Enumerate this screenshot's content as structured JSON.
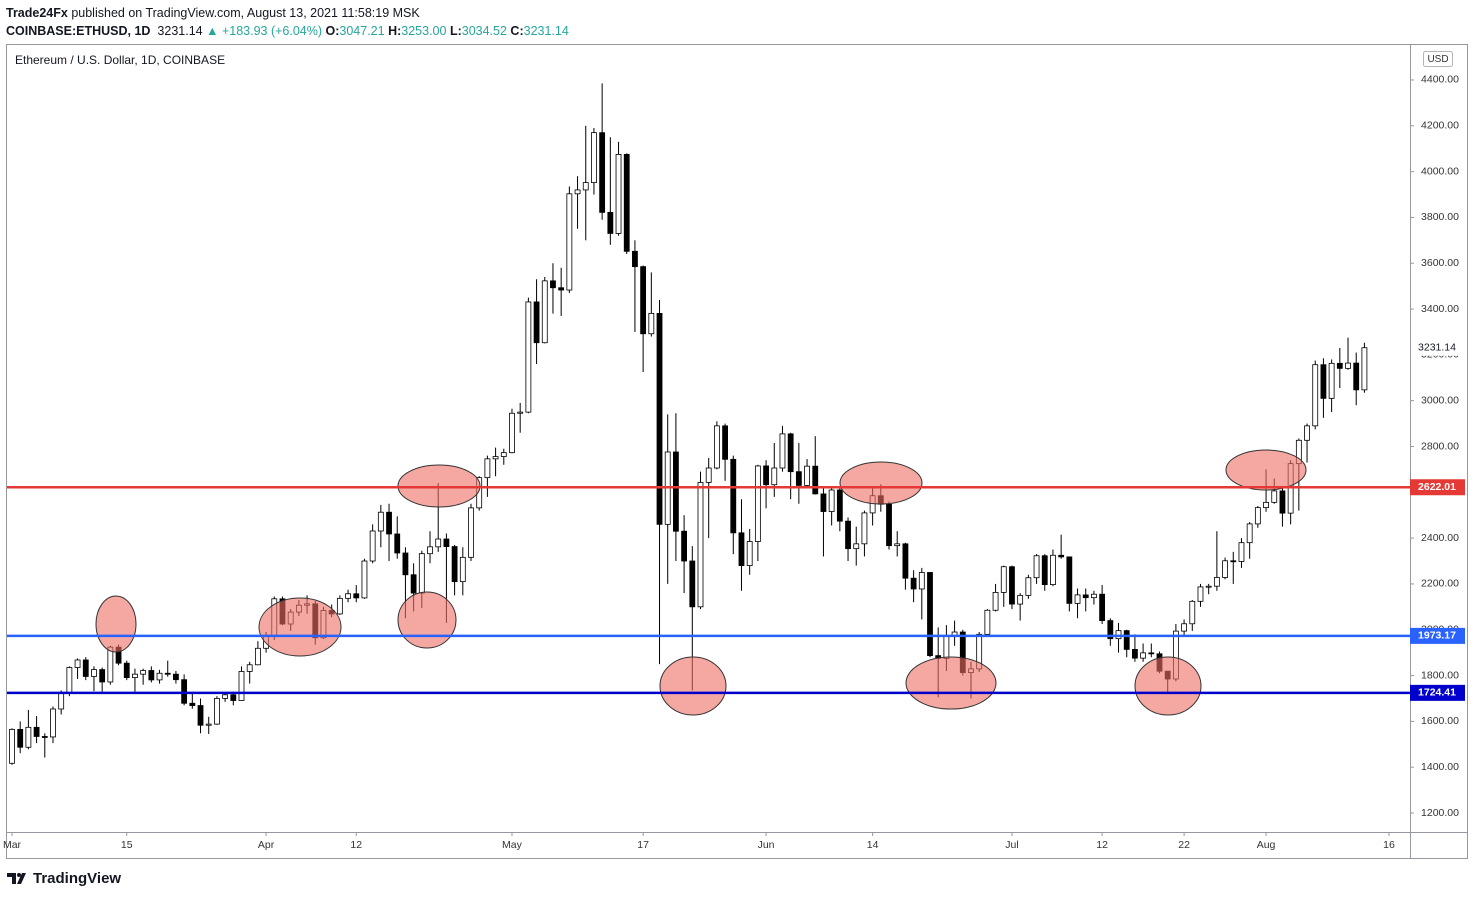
{
  "header": {
    "author": "Trade24Fx",
    "published": "published on TradingView.com, August 13, 2021 11:58:19 MSK",
    "symbol": "COINBASE:ETHUSD, 1D",
    "last": "3231.14",
    "change": "▲ +183.93 (+6.04%)",
    "ohlc": [
      {
        "label": "O:",
        "value": "3047.21"
      },
      {
        "label": "H:",
        "value": "3253.00"
      },
      {
        "label": "L:",
        "value": "3034.52"
      },
      {
        "label": "C:",
        "value": "3231.14"
      }
    ]
  },
  "footer": "TradingView",
  "chart_data": {
    "type": "candlestick",
    "title": "Ethereum / U.S. Dollar, 1D, COINBASE",
    "currency": "USD",
    "up_color": "#ffffff",
    "down_color": "#000000",
    "edge_color": "#000000",
    "ylim": [
      1117,
      4557
    ],
    "yticks": [
      {
        "value": 1200,
        "label": "1200.00"
      },
      {
        "value": 1400,
        "label": "1400.00"
      },
      {
        "value": 1600,
        "label": "1600.00"
      },
      {
        "value": 1800,
        "label": "1800.00"
      },
      {
        "value": 2000,
        "label": "2000.00"
      },
      {
        "value": 2200,
        "label": "2200.00"
      },
      {
        "value": 2400,
        "label": "2400.00"
      },
      {
        "value": 2600,
        "label": "2600.00"
      },
      {
        "value": 2800,
        "label": "2800.00"
      },
      {
        "value": 3000,
        "label": "3000.00"
      },
      {
        "value": 3200,
        "label": "3200.00"
      },
      {
        "value": 3400,
        "label": "3400.00"
      },
      {
        "value": 3600,
        "label": "3600.00"
      },
      {
        "value": 3800,
        "label": "3800.00"
      },
      {
        "value": 4000,
        "label": "4000.00"
      },
      {
        "value": 4200,
        "label": "4200.00"
      },
      {
        "value": 4400,
        "label": "4400.00"
      }
    ],
    "grid": false,
    "levels": [
      {
        "value": 2622.01,
        "color": "#e53935"
      },
      {
        "value": 1973.17,
        "color": "#2962ff"
      },
      {
        "value": 1724.41,
        "color": "#0000cd"
      }
    ],
    "categories": [
      "Mar",
      null,
      null,
      null,
      null,
      null,
      null,
      null,
      null,
      null,
      null,
      null,
      null,
      null,
      "15",
      null,
      null,
      null,
      null,
      null,
      null,
      null,
      null,
      null,
      null,
      null,
      null,
      null,
      null,
      null,
      null,
      "Apr",
      null,
      null,
      null,
      null,
      null,
      null,
      null,
      null,
      null,
      null,
      "12",
      null,
      null,
      null,
      null,
      null,
      null,
      null,
      null,
      null,
      null,
      null,
      null,
      null,
      null,
      null,
      null,
      null,
      null,
      "May",
      null,
      null,
      null,
      null,
      null,
      null,
      null,
      null,
      null,
      null,
      null,
      null,
      null,
      null,
      null,
      "17",
      null,
      null,
      null,
      null,
      null,
      null,
      null,
      null,
      null,
      null,
      null,
      null,
      null,
      null,
      "Jun",
      null,
      null,
      null,
      null,
      null,
      null,
      null,
      null,
      null,
      null,
      null,
      null,
      "14",
      null,
      null,
      null,
      null,
      null,
      null,
      null,
      null,
      null,
      null,
      null,
      null,
      null,
      null,
      null,
      null,
      "Jul",
      null,
      null,
      null,
      null,
      null,
      null,
      null,
      null,
      null,
      null,
      "12",
      null,
      null,
      null,
      null,
      null,
      null,
      null,
      null,
      null,
      "22",
      null,
      null,
      null,
      null,
      null,
      null,
      null,
      null,
      null,
      "Aug",
      null,
      null,
      null,
      null,
      null,
      null,
      null,
      null,
      null,
      null,
      null,
      null,
      null,
      null,
      "16"
    ],
    "open": [
      1417,
      1565,
      1487,
      1574,
      1534,
      1532,
      1654,
      1723,
      1835,
      1868,
      1796,
      1826,
      1772,
      1924,
      1854,
      1791,
      1806,
      1822,
      1781,
      1810,
      1806,
      1782,
      1679,
      1669,
      1583,
      1588,
      1700,
      1716,
      1691,
      1818,
      1847,
      1919,
      1970,
      2135,
      2025,
      2077,
      2107,
      2113,
      1965,
      2084,
      2069,
      2137,
      2157,
      2139,
      2300,
      2431,
      2513,
      2418,
      2335,
      2240,
      2160,
      2332,
      2362,
      2396,
      2363,
      2210,
      2316,
      2532,
      2664,
      2746,
      2756,
      2773,
      2945,
      2950,
      3431,
      3253,
      3523,
      3493,
      3483,
      3903,
      3920,
      3952,
      4170,
      3822,
      3730,
      4075,
      3652,
      3585,
      3292,
      3381,
      2460,
      2776,
      2430,
      2300,
      2100,
      2643,
      2706,
      2890,
      2744,
      2423,
      2280,
      2385,
      2715,
      2633,
      2706,
      2855,
      2690,
      2630,
      2714,
      2593,
      2516,
      2610,
      2474,
      2354,
      2375,
      2510,
      2585,
      2548,
      2367,
      2375,
      2225,
      2178,
      2250,
      1887,
      1875,
      1970,
      1990,
      1813,
      1829,
      1980,
      2085,
      2163,
      2275,
      2112,
      2150,
      2227,
      2323,
      2197,
      2325,
      2318,
      2115,
      2152,
      2140,
      2155,
      2040,
      1961,
      1996,
      1914,
      1876,
      1899,
      1895,
      1819,
      1785,
      1994,
      2026,
      2124,
      2187,
      2190,
      2228,
      2301,
      2298,
      2380,
      2462,
      2533,
      2556,
      2606,
      2509,
      2725,
      2827,
      2890,
      3157,
      3010,
      3163,
      3141,
      3164,
      3047.21,
      null,
      null,
      null
    ],
    "high": [
      1570,
      1600,
      1650,
      1623,
      1548,
      1665,
      1735,
      1840,
      1875,
      1880,
      1840,
      1835,
      1930,
      1935,
      1865,
      1830,
      1830,
      1840,
      1825,
      1865,
      1820,
      1805,
      1720,
      1700,
      1620,
      1710,
      1728,
      1730,
      1840,
      1860,
      1950,
      1990,
      2145,
      2145,
      2090,
      2130,
      2150,
      2125,
      2100,
      2110,
      2150,
      2175,
      2195,
      2310,
      2460,
      2545,
      2550,
      2495,
      2360,
      2290,
      2345,
      2430,
      2640,
      2420,
      2370,
      2360,
      2550,
      2670,
      2760,
      2795,
      2790,
      2965,
      2990,
      3450,
      3530,
      3540,
      3600,
      3580,
      3935,
      3980,
      4200,
      4190,
      4385,
      4150,
      4130,
      4080,
      3700,
      3590,
      3560,
      3440,
      2940,
      2945,
      2500,
      2365,
      2690,
      2750,
      2910,
      2900,
      2760,
      2570,
      2440,
      2720,
      2740,
      2815,
      2890,
      2860,
      2815,
      2745,
      2845,
      2620,
      2620,
      2620,
      2490,
      2450,
      2520,
      2620,
      2635,
      2560,
      2430,
      2380,
      2260,
      2270,
      2250,
      2010,
      2020,
      2040,
      2000,
      1860,
      1990,
      2090,
      2200,
      2280,
      2280,
      2160,
      2240,
      2330,
      2330,
      2350,
      2415,
      2320,
      2180,
      2180,
      2170,
      2195,
      2050,
      2030,
      2000,
      1980,
      1940,
      1940,
      1905,
      1820,
      2025,
      2045,
      2130,
      2200,
      2200,
      2430,
      2315,
      2340,
      2400,
      2470,
      2540,
      2700,
      2660,
      2625,
      2740,
      2835,
      2900,
      3175,
      3185,
      3180,
      3230,
      3275,
      3210,
      3253,
      null,
      null,
      null
    ],
    "low": [
      1410,
      1461,
      1478,
      1505,
      1442,
      1505,
      1630,
      1710,
      1785,
      1780,
      1732,
      1730,
      1760,
      1845,
      1780,
      1730,
      1760,
      1770,
      1765,
      1795,
      1765,
      1670,
      1655,
      1548,
      1545,
      1585,
      1685,
      1670,
      1690,
      1765,
      1845,
      1900,
      1955,
      2020,
      1995,
      2060,
      2070,
      1935,
      1960,
      2055,
      2065,
      2120,
      2120,
      2135,
      2290,
      2360,
      2300,
      2310,
      2050,
      2080,
      2095,
      2290,
      2340,
      2030,
      2150,
      2150,
      2300,
      2520,
      2580,
      2670,
      2720,
      2770,
      2860,
      2945,
      3160,
      3250,
      3380,
      3370,
      3470,
      3750,
      3700,
      3900,
      3790,
      3680,
      3720,
      3640,
      3300,
      3125,
      3280,
      1850,
      2200,
      2300,
      2160,
      1735,
      2090,
      2400,
      2700,
      2650,
      2330,
      2170,
      2240,
      2300,
      2530,
      2580,
      2690,
      2570,
      2550,
      2620,
      2590,
      2320,
      2455,
      2430,
      2300,
      2280,
      2320,
      2455,
      2515,
      2350,
      2320,
      2175,
      2120,
      2045,
      1880,
      1705,
      1820,
      1930,
      1800,
      1700,
      1815,
      1970,
      2080,
      2100,
      2090,
      2040,
      2135,
      2200,
      2170,
      2190,
      2310,
      2080,
      2050,
      2080,
      2110,
      2025,
      1930,
      1900,
      1880,
      1860,
      1860,
      1880,
      1810,
      1720,
      1775,
      1970,
      1995,
      2100,
      2155,
      2170,
      2220,
      2200,
      2270,
      2310,
      2445,
      2515,
      2550,
      2450,
      2460,
      2520,
      2730,
      2875,
      2925,
      2950,
      3055,
      3135,
      2980,
      3034.52,
      null,
      null,
      null
    ],
    "close": [
      1565,
      1487,
      1574,
      1534,
      1532,
      1654,
      1723,
      1835,
      1868,
      1796,
      1826,
      1772,
      1924,
      1854,
      1791,
      1806,
      1822,
      1781,
      1810,
      1806,
      1782,
      1679,
      1669,
      1583,
      1588,
      1700,
      1716,
      1691,
      1818,
      1847,
      1919,
      1970,
      2135,
      2025,
      2077,
      2107,
      2113,
      1965,
      2084,
      2069,
      2137,
      2157,
      2139,
      2300,
      2431,
      2513,
      2418,
      2335,
      2240,
      2160,
      2332,
      2362,
      2396,
      2363,
      2210,
      2316,
      2532,
      2664,
      2746,
      2756,
      2773,
      2945,
      2950,
      3431,
      3253,
      3523,
      3493,
      3483,
      3903,
      3920,
      3952,
      4170,
      3822,
      3730,
      4075,
      3652,
      3585,
      3292,
      3381,
      2460,
      2776,
      2430,
      2300,
      2100,
      2643,
      2706,
      2890,
      2744,
      2423,
      2280,
      2385,
      2715,
      2633,
      2706,
      2855,
      2690,
      2630,
      2714,
      2593,
      2516,
      2610,
      2474,
      2354,
      2375,
      2510,
      2585,
      2548,
      2367,
      2375,
      2225,
      2178,
      2250,
      1887,
      1875,
      1970,
      1990,
      1813,
      1829,
      1980,
      2085,
      2163,
      2275,
      2112,
      2150,
      2227,
      2323,
      2197,
      2325,
      2318,
      2115,
      2152,
      2140,
      2155,
      2040,
      1961,
      1996,
      1914,
      1876,
      1899,
      1895,
      1819,
      1785,
      1994,
      2026,
      2124,
      2187,
      2190,
      2228,
      2301,
      2298,
      2380,
      2462,
      2533,
      2556,
      2606,
      2509,
      2725,
      2827,
      2890,
      3157,
      3010,
      3163,
      3141,
      3164,
      3047.21,
      3231.14,
      null,
      null,
      null
    ]
  }
}
